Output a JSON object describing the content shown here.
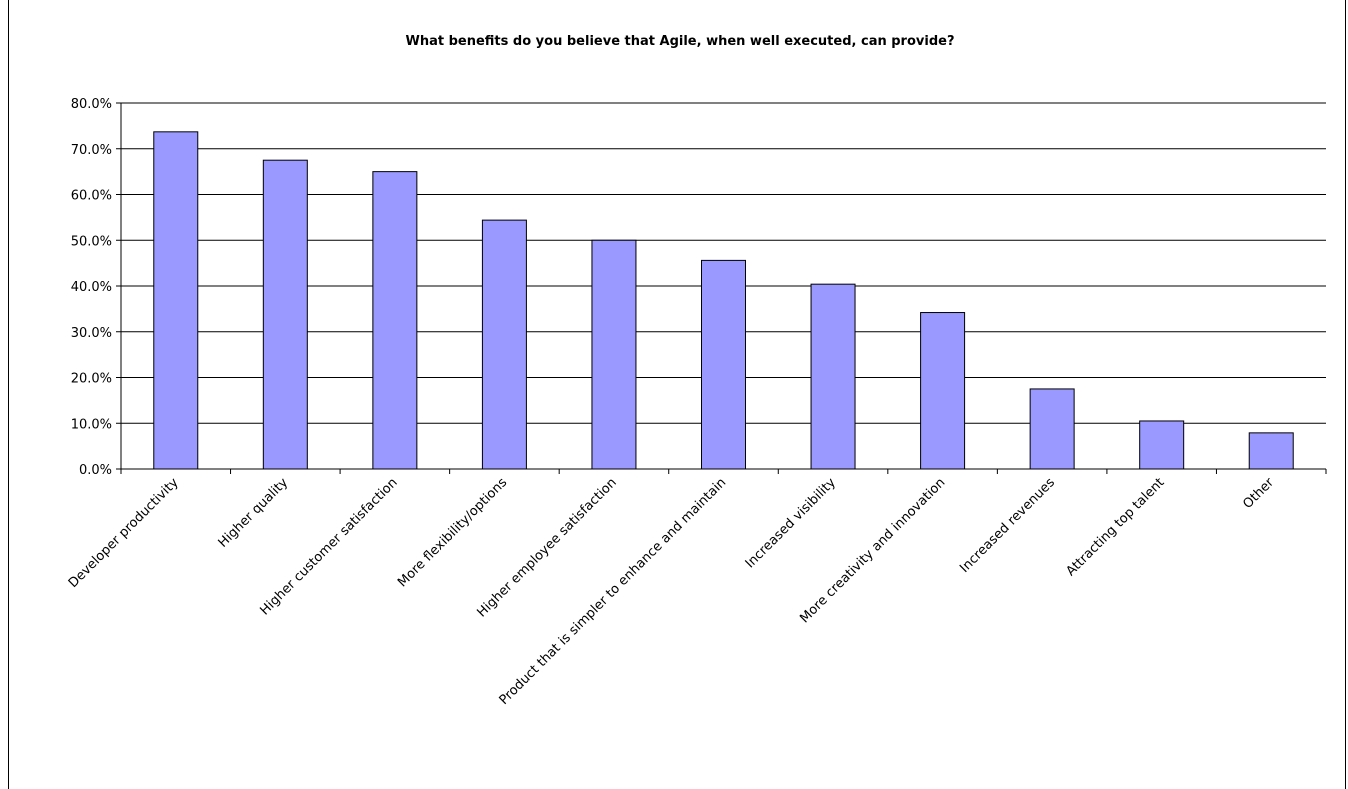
{
  "chart_data": {
    "type": "bar",
    "title": "What benefits do you believe that Agile, when well executed, can provide?",
    "xlabel": "",
    "ylabel": "",
    "categories": [
      "Developer productivity",
      "Higher quality",
      "Higher customer satisfaction",
      "More flexibility/options",
      "Higher employee satisfaction",
      "Product that is simpler to enhance and maintain",
      "Increased visibility",
      "More creativity and innovation",
      "Increased revenues",
      "Attracting top talent",
      "Other"
    ],
    "values": [
      73.7,
      67.5,
      65.0,
      54.4,
      50.0,
      45.6,
      40.4,
      34.2,
      17.5,
      10.5,
      7.9
    ],
    "ylim": [
      0,
      80
    ],
    "ytick_values": [
      0,
      10,
      20,
      30,
      40,
      50,
      60,
      70,
      80
    ],
    "ytick_labels": [
      "0.0%",
      "10.0%",
      "20.0%",
      "30.0%",
      "40.0%",
      "50.0%",
      "60.0%",
      "70.0%",
      "80.0%"
    ],
    "grid": true,
    "legend": "none",
    "colors": {
      "bar_fill": "#9999ff",
      "bar_stroke": "#000000",
      "grid": "#000000",
      "background": "#ffffff"
    }
  }
}
